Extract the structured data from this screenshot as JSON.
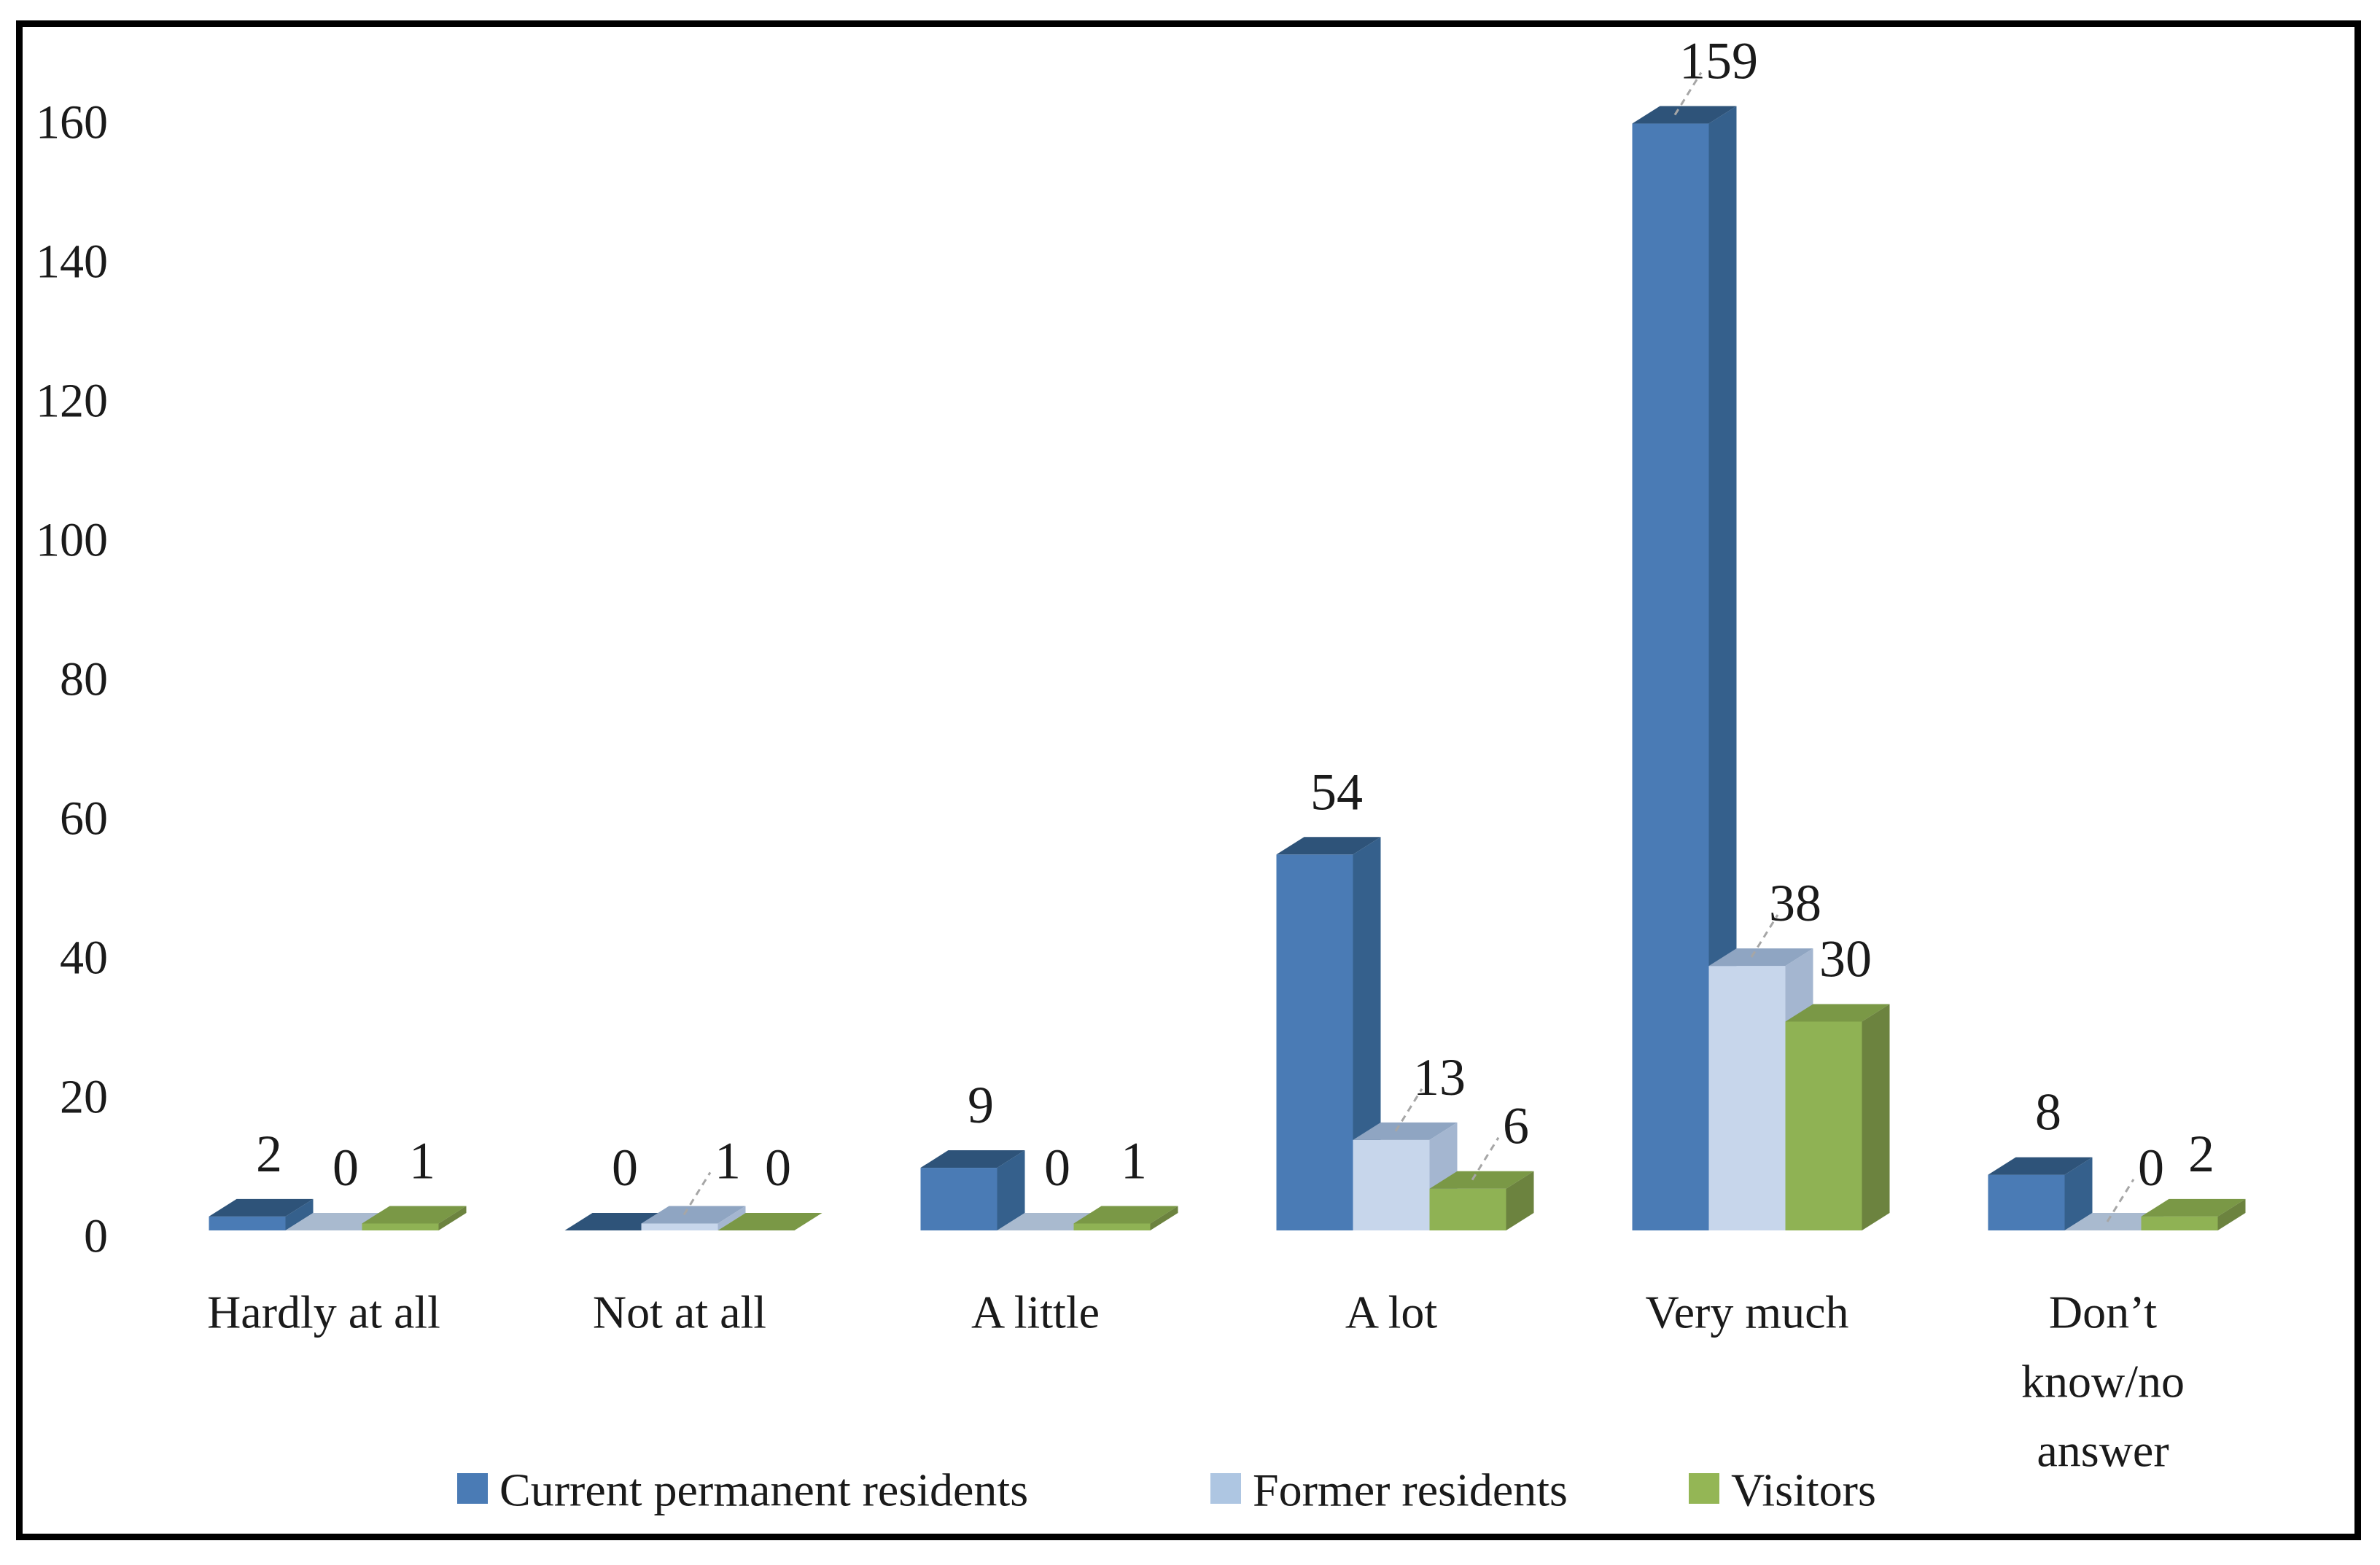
{
  "page": {
    "background": "#FFFFFF",
    "frame_border_color": "#000000",
    "text_color": "#1A1A1A",
    "leader_line_color": "#A6A6A6"
  },
  "chart_data": {
    "type": "bar",
    "variant": "3d-clustered-column",
    "title": "",
    "xlabel": "",
    "ylabel": "",
    "grid": false,
    "legend_position": "bottom",
    "categories": [
      "Hardly at all",
      "Not at all",
      "A little",
      "A lot",
      "Very much",
      "Don’t know/no answer"
    ],
    "category_display_lines": [
      [
        "Hardly at all"
      ],
      [
        "Not at all"
      ],
      [
        "A little"
      ],
      [
        "A lot"
      ],
      [
        "Very much"
      ],
      [
        "Don’t",
        "know/no",
        "answer"
      ]
    ],
    "series": [
      {
        "name": "Current permanent residents",
        "values": [
          2,
          0,
          9,
          54,
          159,
          8
        ],
        "data_label_texts": [
          "2",
          "0",
          "9",
          "54",
          "159",
          "8"
        ],
        "leader_lines": [
          false,
          false,
          false,
          false,
          true,
          false
        ],
        "colors": {
          "front": "#4A7BB5",
          "top": "#2E5379",
          "side": "#35608C",
          "flat_zero": "#2E5379",
          "legend": "#4A7BB5"
        }
      },
      {
        "name": "Former residents",
        "values": [
          0,
          1,
          0,
          13,
          38,
          0
        ],
        "data_label_texts": [
          "0",
          "1",
          "0",
          "13",
          "38",
          "0"
        ],
        "leader_lines": [
          false,
          true,
          false,
          true,
          true,
          true
        ],
        "colors": {
          "front": "#C7D6EB",
          "top": "#8FA5C2",
          "side": "#A4B6D0",
          "flat_zero": "#A9BACF",
          "legend": "#AEC6E2"
        }
      },
      {
        "name": "Visitors",
        "values": [
          1,
          0,
          1,
          6,
          30,
          2
        ],
        "data_label_texts": [
          "1",
          "0",
          "1",
          "6",
          "30",
          "2"
        ],
        "leader_lines": [
          false,
          false,
          false,
          true,
          false,
          false
        ],
        "colors": {
          "front": "#8FB254",
          "top": "#7A9846",
          "side": "#6C833F",
          "flat_zero": "#7A9846",
          "legend": "#94B655"
        }
      }
    ],
    "y_axis": {
      "min": 0,
      "max": 160,
      "step": 20,
      "tick_labels": [
        "0",
        "20",
        "40",
        "60",
        "80",
        "100",
        "120",
        "140",
        "160"
      ]
    },
    "ylim": [
      0,
      160
    ],
    "data_labels_shown": true
  }
}
